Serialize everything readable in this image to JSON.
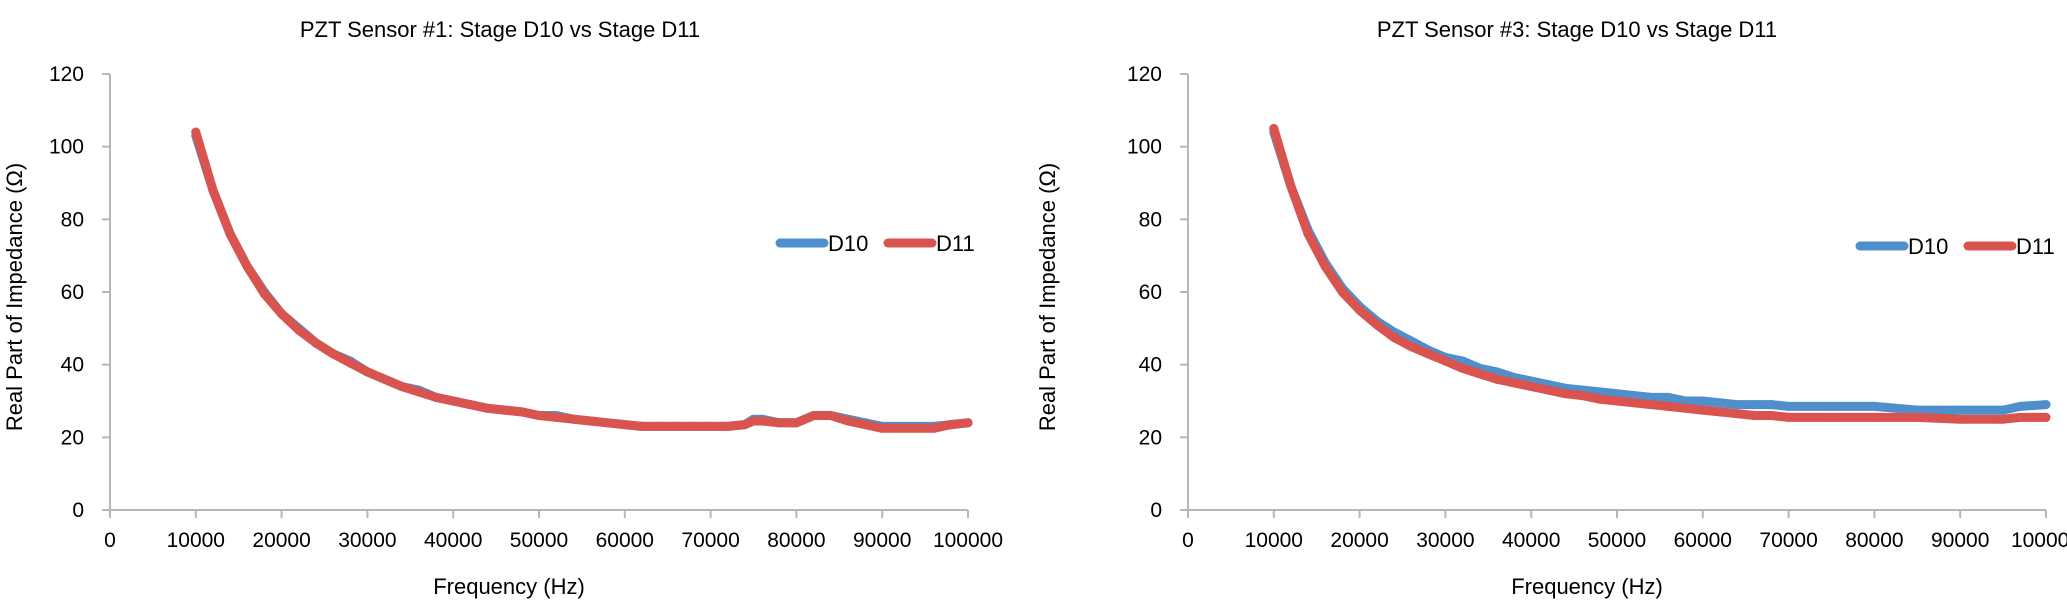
{
  "chart_data": [
    {
      "type": "line",
      "title": "PZT Sensor #1: Stage D10 vs Stage D11",
      "xlabel": "Frequency (Hz)",
      "ylabel": "Real Part of Impedance (Ω)",
      "xlim": [
        0,
        100000
      ],
      "ylim": [
        0,
        120
      ],
      "x_ticks": [
        "0",
        "10000",
        "20000",
        "30000",
        "40000",
        "50000",
        "60000",
        "70000",
        "80000",
        "90000",
        "100000"
      ],
      "y_ticks": [
        "0",
        "20",
        "40",
        "60",
        "80",
        "100",
        "120"
      ],
      "legend": "right",
      "series": [
        {
          "name": "D10",
          "color": "#4f8fcb",
          "x": [
            10000,
            12000,
            14000,
            16000,
            18000,
            20000,
            22000,
            24000,
            26000,
            28000,
            30000,
            32000,
            34000,
            36000,
            38000,
            40000,
            42000,
            44000,
            46000,
            48000,
            50000,
            52000,
            54000,
            56000,
            58000,
            60000,
            62000,
            64000,
            66000,
            68000,
            70000,
            72000,
            74000,
            75000,
            76000,
            78000,
            80000,
            82000,
            84000,
            86000,
            88000,
            90000,
            92000,
            94000,
            96000,
            98000,
            100000
          ],
          "values": [
            103,
            88,
            76,
            67,
            60,
            54,
            50,
            46,
            43,
            41,
            38,
            36,
            34,
            33,
            31,
            30,
            29,
            28,
            27.5,
            27,
            26,
            26,
            25,
            24.5,
            24,
            23.5,
            23,
            23,
            23,
            23,
            23,
            23,
            23.5,
            25,
            25,
            24,
            24,
            26,
            26,
            25,
            24,
            23,
            23,
            23,
            23,
            23.5,
            24
          ]
        },
        {
          "name": "D11",
          "color": "#d9534f",
          "x": [
            10000,
            12000,
            14000,
            16000,
            18000,
            20000,
            22000,
            24000,
            26000,
            28000,
            30000,
            32000,
            34000,
            36000,
            38000,
            40000,
            42000,
            44000,
            46000,
            48000,
            50000,
            52000,
            54000,
            56000,
            58000,
            60000,
            62000,
            64000,
            66000,
            68000,
            70000,
            72000,
            74000,
            75000,
            76000,
            78000,
            80000,
            82000,
            84000,
            86000,
            88000,
            90000,
            92000,
            94000,
            96000,
            98000,
            100000
          ],
          "values": [
            104,
            88,
            76,
            67,
            59.5,
            54,
            49.5,
            46,
            43,
            40.5,
            38,
            36,
            34,
            32.5,
            31,
            30,
            29,
            28,
            27.5,
            27,
            26,
            25.5,
            25,
            24.5,
            24,
            23.5,
            23,
            23,
            23,
            23,
            23,
            23,
            23.5,
            24.5,
            24.5,
            24,
            24,
            26,
            26,
            24.5,
            23.5,
            22.5,
            22.5,
            22.5,
            22.5,
            23.5,
            24
          ]
        }
      ]
    },
    {
      "type": "line",
      "title": "PZT Sensor #3: Stage D10 vs Stage D11",
      "xlabel": "Frequency (Hz)",
      "ylabel": "Real Part of Impedance (Ω)",
      "xlim": [
        0,
        100000
      ],
      "ylim": [
        0,
        120
      ],
      "x_ticks": [
        "0",
        "10000",
        "20000",
        "30000",
        "40000",
        "50000",
        "60000",
        "70000",
        "80000",
        "90000",
        "100000"
      ],
      "y_ticks": [
        "0",
        "20",
        "40",
        "60",
        "80",
        "100",
        "120"
      ],
      "legend": "right",
      "series": [
        {
          "name": "D10",
          "color": "#4f8fcb",
          "x": [
            10000,
            12000,
            14000,
            16000,
            18000,
            20000,
            22000,
            24000,
            26000,
            28000,
            30000,
            32000,
            34000,
            36000,
            38000,
            40000,
            42000,
            44000,
            46000,
            48000,
            50000,
            52000,
            54000,
            56000,
            58000,
            60000,
            62000,
            64000,
            66000,
            68000,
            70000,
            75000,
            80000,
            85000,
            90000,
            95000,
            97000,
            100000
          ],
          "values": [
            104,
            89,
            77,
            68,
            61,
            56,
            52,
            49,
            46.5,
            44,
            42,
            41,
            39,
            38,
            36.5,
            35.5,
            34.5,
            33.5,
            33,
            32.5,
            32,
            31.5,
            31,
            31,
            30,
            30,
            29.5,
            29,
            29,
            29,
            28.5,
            28.5,
            28.5,
            27.5,
            27.5,
            27.5,
            28.5,
            29
          ]
        },
        {
          "name": "D11",
          "color": "#d9534f",
          "x": [
            10000,
            12000,
            14000,
            16000,
            18000,
            20000,
            22000,
            24000,
            26000,
            28000,
            30000,
            32000,
            34000,
            36000,
            38000,
            40000,
            42000,
            44000,
            46000,
            48000,
            50000,
            52000,
            54000,
            56000,
            58000,
            60000,
            62000,
            64000,
            66000,
            68000,
            70000,
            75000,
            80000,
            85000,
            90000,
            95000,
            97000,
            100000
          ],
          "values": [
            105,
            89,
            76,
            67,
            60,
            55,
            51,
            47.5,
            45,
            43,
            41,
            39,
            37.5,
            36,
            35,
            34,
            33,
            32,
            31.5,
            30.5,
            30,
            29.5,
            29,
            28.5,
            28,
            27.5,
            27,
            26.5,
            26,
            26,
            25.5,
            25.5,
            25.5,
            25.5,
            25,
            25,
            25.5,
            25.5
          ]
        }
      ]
    }
  ]
}
